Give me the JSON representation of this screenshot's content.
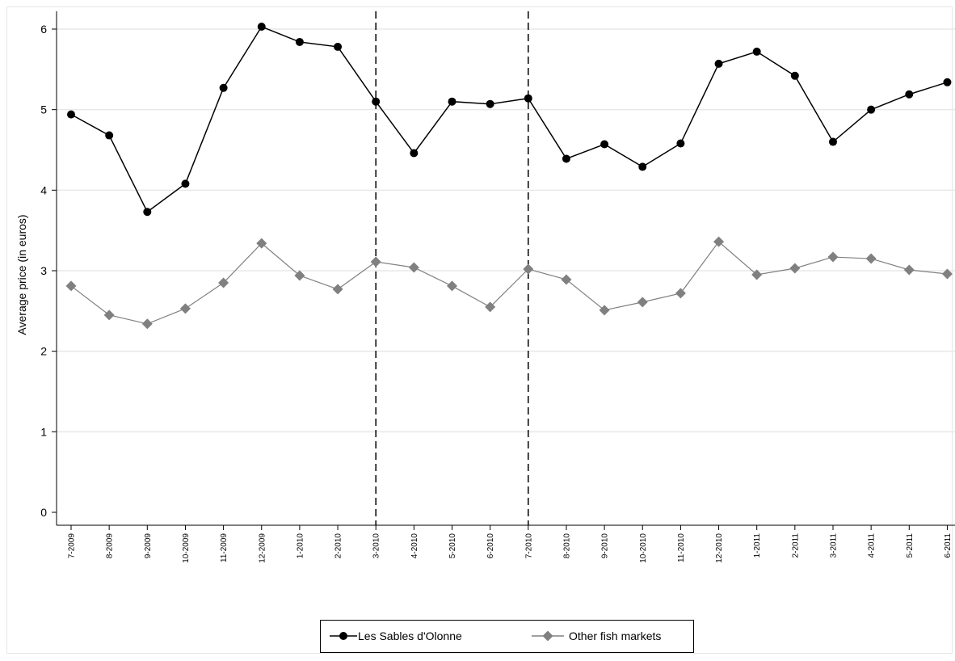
{
  "chart_data": {
    "type": "line",
    "title": "",
    "xlabel": "",
    "ylabel": "Average price (in euros)",
    "ylim": [
      0,
      6
    ],
    "yticks": [
      "0",
      "1",
      "2",
      "3",
      "4",
      "5",
      "6"
    ],
    "grid": true,
    "categories": [
      "7-2009",
      "8-2009",
      "9-2009",
      "10-2009",
      "11-2009",
      "12-2009",
      "1-2010",
      "2-2010",
      "3-2010",
      "4-2010",
      "5-2010",
      "6-2010",
      "7-2010",
      "8-2010",
      "9-2010",
      "10-2010",
      "11-2010",
      "12-2010",
      "1-2011",
      "2-2011",
      "3-2011",
      "4-2011",
      "5-2011",
      "6-2011"
    ],
    "vlines": [
      "3-2010",
      "7-2010"
    ],
    "legend_position": "bottom-center",
    "series": [
      {
        "name": "Les Sables d'Olonne",
        "color": "#000000",
        "marker": "circle",
        "values": [
          4.94,
          4.68,
          3.73,
          4.08,
          5.27,
          6.03,
          5.84,
          5.78,
          5.1,
          4.46,
          5.1,
          5.07,
          5.14,
          4.39,
          4.57,
          4.29,
          4.58,
          5.57,
          5.72,
          5.42,
          4.6,
          5.0,
          5.19,
          5.34
        ]
      },
      {
        "name": "Other fish markets",
        "color": "#808080",
        "marker": "diamond",
        "values": [
          2.81,
          2.45,
          2.34,
          2.53,
          2.85,
          3.34,
          2.94,
          2.77,
          3.11,
          3.04,
          2.81,
          2.55,
          3.02,
          2.89,
          2.51,
          2.61,
          2.72,
          3.36,
          2.95,
          3.03,
          3.17,
          3.15,
          3.01,
          2.96
        ]
      }
    ]
  }
}
